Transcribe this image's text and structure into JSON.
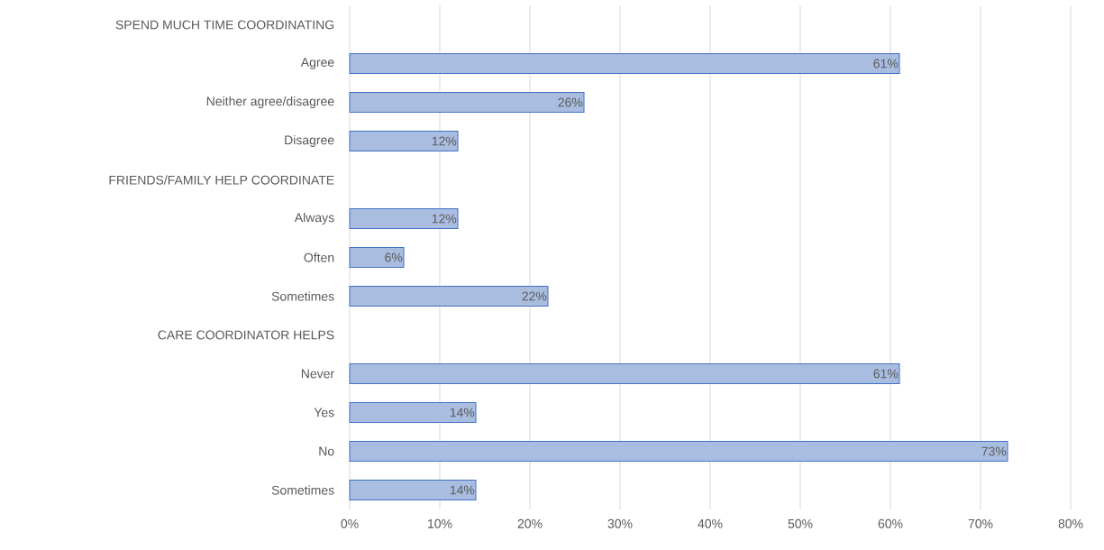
{
  "chart_data": {
    "type": "bar",
    "orientation": "horizontal",
    "categories": [
      "SPEND MUCH TIME COORDINATING",
      "Agree",
      "Neither agree/disagree",
      "Disagree",
      "FRIENDS/FAMILY HELP COORDINATE",
      "Always",
      "Often",
      "Sometimes",
      "CARE COORDINATOR HELPS",
      "Never",
      "Yes",
      "No",
      "Sometimes"
    ],
    "values": [
      null,
      61,
      26,
      12,
      null,
      12,
      6,
      22,
      null,
      61,
      14,
      73,
      14
    ],
    "value_labels": [
      null,
      "61%",
      "26%",
      "12%",
      null,
      "12%",
      "6%",
      "22%",
      null,
      "61%",
      "14%",
      "73%",
      "14%"
    ],
    "color": "#a9bde0",
    "xlim": [
      0,
      80
    ],
    "xticks": [
      {
        "value": 0,
        "label": "0%"
      },
      {
        "value": 10,
        "label": "10%"
      },
      {
        "value": 20,
        "label": "20%"
      },
      {
        "value": 30,
        "label": "30%"
      },
      {
        "value": 40,
        "label": "40%"
      },
      {
        "value": 50,
        "label": "50%"
      },
      {
        "value": 60,
        "label": "60%"
      },
      {
        "value": 70,
        "label": "70%"
      },
      {
        "value": 80,
        "label": "80%"
      }
    ],
    "grid": "x"
  }
}
